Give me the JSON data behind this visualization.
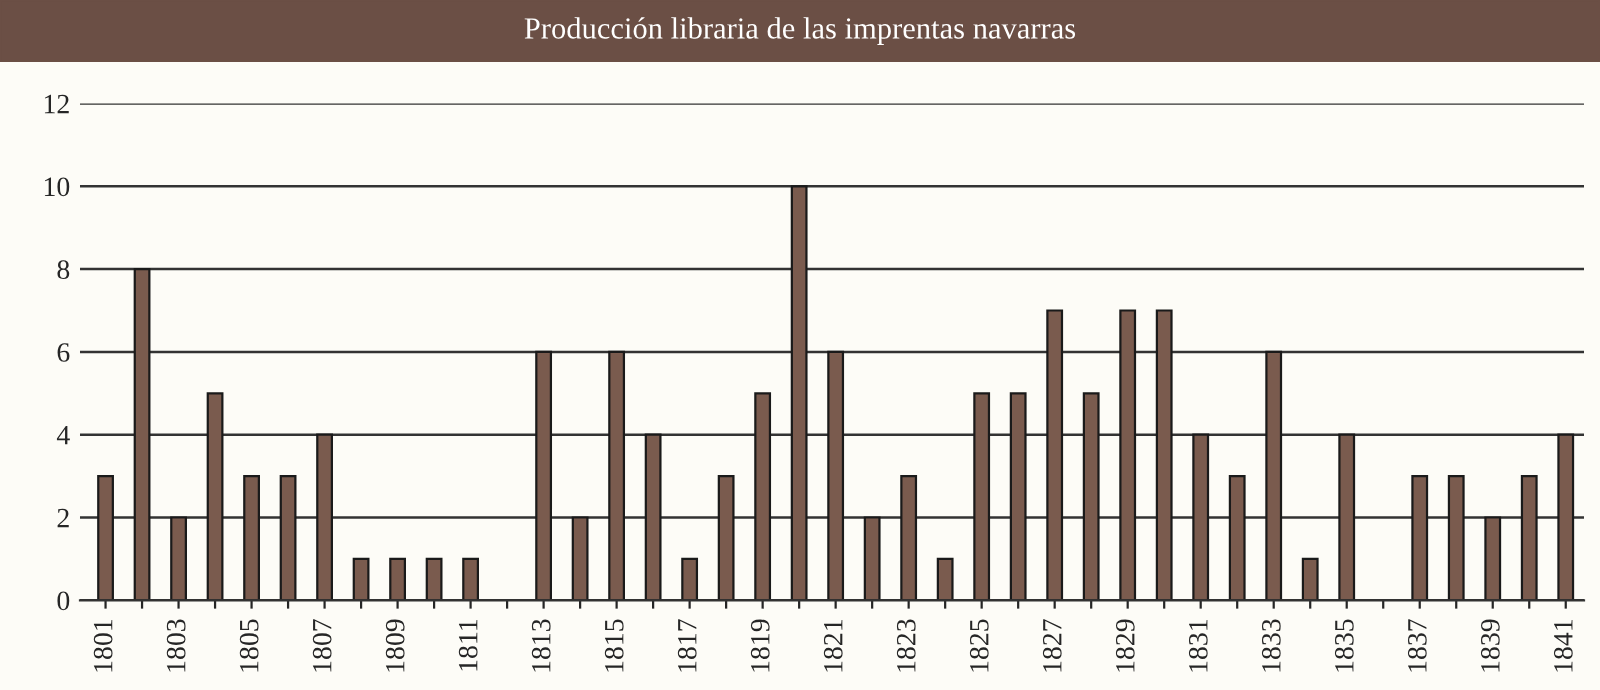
{
  "chart_data": {
    "type": "bar",
    "title": "Producción libraria de las imprentas navarras",
    "categories": [
      "1801",
      null,
      "1803",
      null,
      "1805",
      null,
      "1807",
      null,
      "1809",
      null,
      "1811",
      null,
      "1813",
      null,
      "1815",
      null,
      "1817",
      null,
      "1819",
      null,
      "1821",
      null,
      "1823",
      null,
      "1825",
      null,
      "1827",
      null,
      "1829",
      null,
      "1831",
      null,
      "1833",
      null,
      "1835",
      null,
      "1837",
      null,
      "1839",
      null,
      "1841"
    ],
    "values": [
      3,
      8,
      2,
      5,
      3,
      3,
      4,
      1,
      1,
      1,
      1,
      0,
      6,
      2,
      6,
      4,
      1,
      3,
      5,
      10,
      6,
      2,
      3,
      1,
      5,
      5,
      7,
      5,
      7,
      7,
      4,
      3,
      6,
      1,
      4,
      0,
      3,
      3,
      2,
      3,
      4
    ],
    "color": "#7a5b4e",
    "ylim": [
      0,
      12
    ],
    "yticks": [
      0,
      2,
      4,
      6,
      8,
      10,
      12
    ],
    "grid": "y",
    "legend": false
  }
}
